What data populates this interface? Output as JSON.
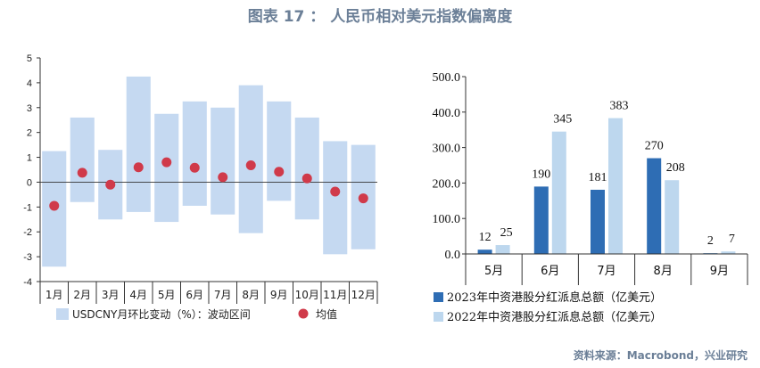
{
  "title": "图表 17 ： 人民币相对美元指数偏离度",
  "source": "资料来源：Macrobond，兴业研究",
  "colors": {
    "range": "#c5d9f1",
    "mean": "#d03a4a",
    "bar2023": "#2e6db4",
    "bar2022": "#bdd7ee"
  },
  "chart_data": [
    {
      "type": "range",
      "categories": [
        "1月",
        "2月",
        "3月",
        "4月",
        "5月",
        "6月",
        "7月",
        "8月",
        "9月",
        "10月",
        "11月",
        "12月"
      ],
      "ylim": [
        -4,
        5
      ],
      "yticks": [
        "-4",
        "-3",
        "-2",
        "-1",
        "0",
        "1",
        "2",
        "3",
        "4",
        "5"
      ],
      "series": [
        {
          "name": "USDCNY月环比变动（%）：波动区间",
          "low": [
            -3.4,
            -0.8,
            -1.5,
            -1.2,
            -1.6,
            -0.95,
            -1.3,
            -2.05,
            -0.75,
            -1.5,
            -2.9,
            -2.7
          ],
          "high": [
            1.25,
            2.6,
            1.3,
            4.25,
            2.75,
            3.25,
            3.0,
            3.9,
            3.25,
            2.6,
            1.65,
            1.5
          ]
        },
        {
          "name": "均值",
          "values": [
            -0.95,
            0.38,
            -0.1,
            0.6,
            0.8,
            0.58,
            0.2,
            0.68,
            0.42,
            0.15,
            -0.38,
            -0.65
          ]
        }
      ]
    },
    {
      "type": "bar",
      "categories": [
        "5月",
        "6月",
        "7月",
        "8月",
        "9月"
      ],
      "ylim": [
        0,
        500
      ],
      "yticks": [
        "0.0",
        "100.0",
        "200.0",
        "300.0",
        "400.0",
        "500.0"
      ],
      "series": [
        {
          "name": "2023年中资港股分红派息总额（亿美元）",
          "values": [
            12,
            190,
            181,
            270,
            2
          ],
          "labels": [
            "12",
            "190",
            "181",
            "270",
            "2"
          ]
        },
        {
          "name": "2022年中资港股分红派息总额（亿美元）",
          "values": [
            25,
            345,
            383,
            208,
            7
          ],
          "labels": [
            "25",
            "345",
            "383",
            "208",
            "7"
          ]
        }
      ]
    }
  ]
}
